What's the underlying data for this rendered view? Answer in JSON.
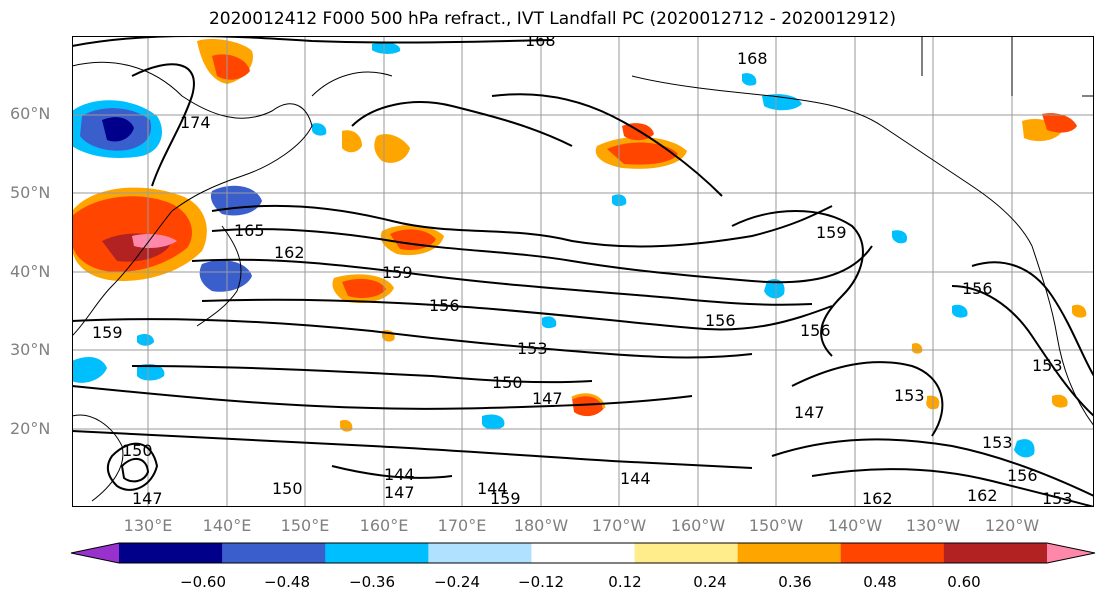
{
  "title": "2020012412 F000 500 hPa refract., IVT Landfall PC (2020012712 - 2020012912)",
  "lat_labels": [
    "60°N",
    "50°N",
    "40°N",
    "30°N",
    "20°N"
  ],
  "lon_labels": [
    "130°E",
    "140°E",
    "150°E",
    "160°E",
    "170°E",
    "180°W",
    "170°W",
    "160°W",
    "150°W",
    "140°W",
    "130°W",
    "120°W"
  ],
  "colorbar": {
    "ticks": [
      "−0.60",
      "−0.48",
      "−0.36",
      "−0.24",
      "−0.12",
      "0.12",
      "0.24",
      "0.36",
      "0.48",
      "0.60"
    ],
    "colors": [
      "#9932cc",
      "#00008b",
      "#3a5fcd",
      "#00bfff",
      "#b0e2ff",
      "#ffffff",
      "#ffec8b",
      "#ffa500",
      "#ff4500",
      "#b22222",
      "#ff88aa"
    ]
  },
  "contour_labels": [
    "168",
    "168",
    "174",
    "165",
    "162",
    "159",
    "156",
    "159",
    "153",
    "150",
    "147",
    "156",
    "159",
    "153",
    "147",
    "153",
    "144",
    "144",
    "147",
    "144",
    "159",
    "150",
    "147",
    "162",
    "153",
    "156",
    "156",
    "150",
    "162",
    "156",
    "153"
  ]
}
